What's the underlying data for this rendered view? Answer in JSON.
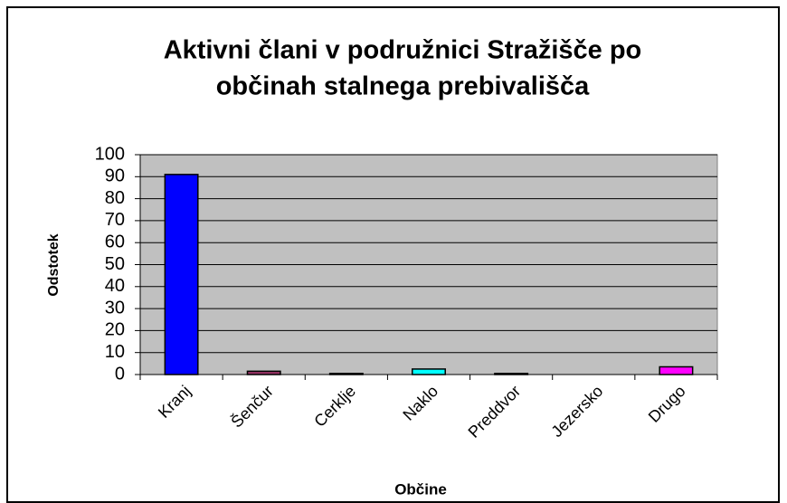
{
  "chart_data": {
    "type": "bar",
    "title": [
      "Aktivni člani v podružnici Stražišče po",
      "občinah stalnega prebivališča"
    ],
    "x_label": "Občine",
    "y_label": "Odstotek",
    "categories": [
      "Kranj",
      "Šenčur",
      "Cerklje",
      "Naklo",
      "Preddvor",
      "Jezersko",
      "Drugo"
    ],
    "values": [
      91,
      1.5,
      0.5,
      2.5,
      0.5,
      0,
      3.5
    ],
    "colors": [
      "#0000ff",
      "#993366",
      "#000080",
      "#00ffff",
      "#000080",
      "#008080",
      "#ff00ff"
    ],
    "ylim": [
      0,
      100
    ],
    "yticks": [
      0,
      10,
      20,
      30,
      40,
      50,
      60,
      70,
      80,
      90,
      100
    ],
    "grid": true
  }
}
